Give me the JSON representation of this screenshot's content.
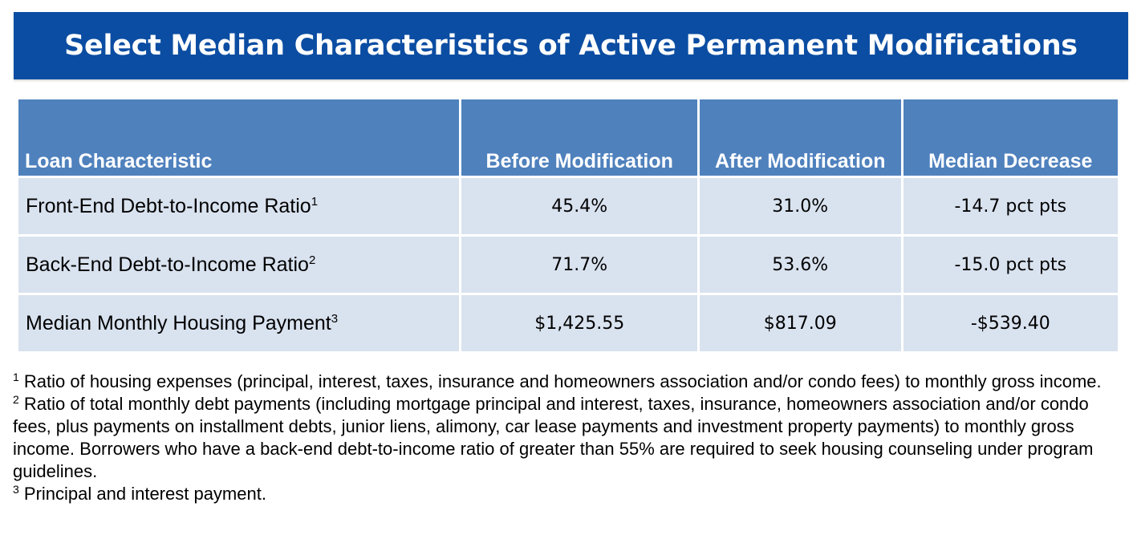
{
  "title": "Select Median Characteristics of Active Permanent Modifications",
  "table": {
    "headers": [
      "Loan Characteristic",
      "Before Modification",
      "After Modification",
      "Median Decrease"
    ],
    "rows": [
      {
        "label": "Front-End Debt-to-Income Ratio",
        "note": "1",
        "before": "45.4%",
        "after": "31.0%",
        "decrease": "-14.7 pct pts"
      },
      {
        "label": "Back-End Debt-to-Income Ratio",
        "note": "2",
        "before": "71.7%",
        "after": "53.6%",
        "decrease": "-15.0 pct pts"
      },
      {
        "label": "Median Monthly Housing Payment",
        "note": "3",
        "before": "$1,425.55",
        "after": "$817.09",
        "decrease": "-$539.40"
      }
    ]
  },
  "footnotes": [
    {
      "mark": "1",
      "text": " Ratio of housing expenses (principal, interest, taxes, insurance and homeowners association and/or condo fees) to monthly gross income."
    },
    {
      "mark": "2",
      "text": " Ratio of total monthly debt payments (including mortgage principal and interest, taxes, insurance, homeowners association and/or condo fees, plus payments on installment debts, junior liens, alimony, car lease payments and investment property payments) to monthly gross income. Borrowers who have a back-end debt-to-income ratio of greater than 55% are required to seek housing counseling under program guidelines."
    },
    {
      "mark": "3",
      "text": " Principal and interest payment."
    }
  ]
}
